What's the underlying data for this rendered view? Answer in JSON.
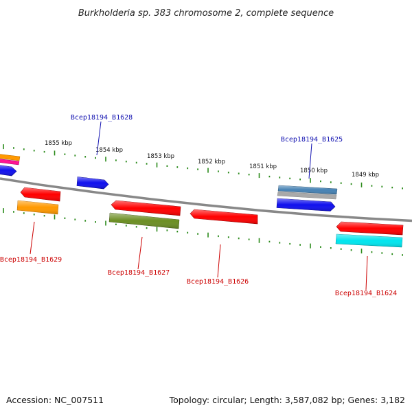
{
  "title": "Burkholderia sp. 383 chromosome 2, complete sequence",
  "footer": {
    "accession": "Accession: NC_007511",
    "summary": "Topology: circular; Length: 3,587,082 bp; Genes: 3,182"
  },
  "colors": {
    "backbone": "#888888",
    "ticks": "#2a8a1a",
    "forward_label": "#1010b0",
    "reverse_label": "#cc0000"
  },
  "scale_labels": [
    "1855 kbp",
    "1854 kbp",
    "1853 kbp",
    "1852 kbp",
    "1851 kbp",
    "1850 kbp",
    "1849 kbp"
  ],
  "genes": [
    {
      "label": "Bcep18194_B1628",
      "strand": "forward",
      "color": "#1010ee"
    },
    {
      "label": "Bcep18194_B1625",
      "strand": "forward",
      "color": "#1010ee"
    },
    {
      "label": "",
      "strand": "forward",
      "color": "#1010ee"
    },
    {
      "label": "",
      "strand": "forward",
      "color": "#ff9900"
    },
    {
      "label": "",
      "strand": "forward",
      "color": "#ff1493"
    },
    {
      "label": "",
      "strand": "forward",
      "color": "#4682b4"
    },
    {
      "label": "",
      "strand": "forward",
      "color": "#a9a9a9"
    },
    {
      "label": "Bcep18194_B1629",
      "strand": "reverse",
      "color": "#ff0000"
    },
    {
      "label": "Bcep18194_B1627",
      "strand": "reverse",
      "color": "#ff0000"
    },
    {
      "label": "Bcep18194_B1626",
      "strand": "reverse",
      "color": "#ff0000"
    },
    {
      "label": "Bcep18194_B1624",
      "strand": "reverse",
      "color": "#ff0000"
    },
    {
      "label": "",
      "strand": "reverse",
      "color": "#ff9900"
    },
    {
      "label": "",
      "strand": "reverse",
      "color": "#6b8e23"
    },
    {
      "label": "",
      "strand": "reverse",
      "color": "#00e5ee"
    }
  ]
}
